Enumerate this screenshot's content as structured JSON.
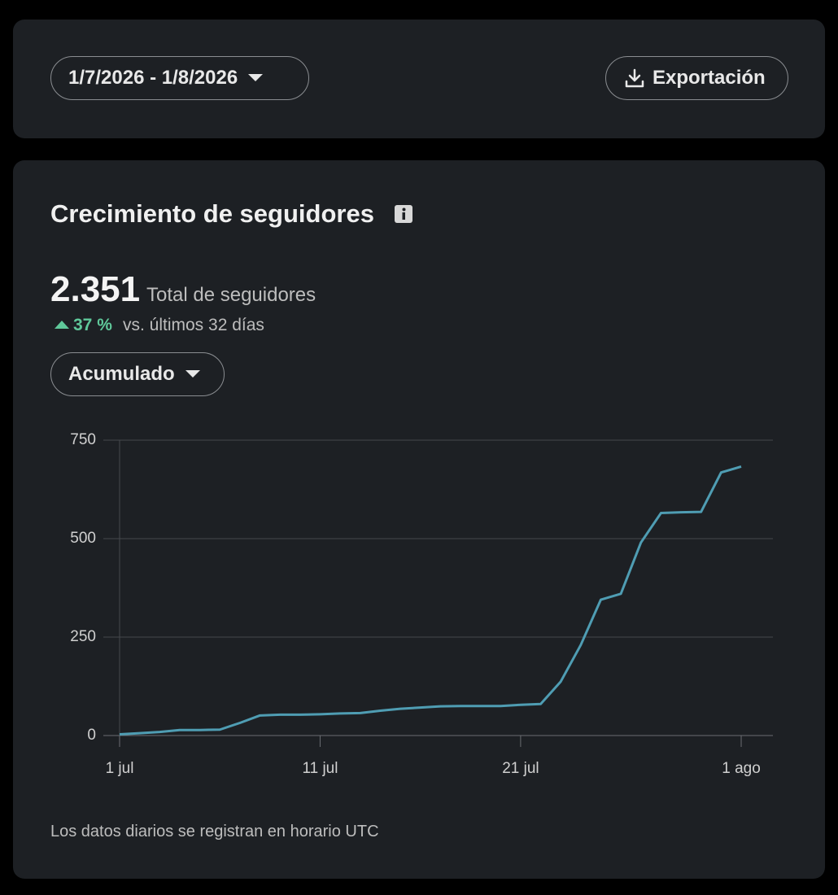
{
  "toolbar": {
    "date_range": "1/7/2026 - 1/8/2026",
    "export": "Exportación"
  },
  "card": {
    "title": "Crecimiento de seguidores",
    "total": "2.351",
    "total_label": "Total de seguidores",
    "change": "37 %",
    "change_label": "vs. últimos 32 días",
    "mode": "Acumulado",
    "footnote": "Los datos diarios se registran en horario UTC"
  },
  "chart_data": {
    "type": "line",
    "categories": [
      "1 jul",
      null,
      null,
      null,
      null,
      null,
      null,
      null,
      null,
      null,
      "11 jul",
      null,
      null,
      null,
      null,
      null,
      null,
      null,
      null,
      null,
      "21 jul",
      null,
      null,
      null,
      null,
      null,
      null,
      null,
      null,
      null,
      null,
      "1 ago"
    ],
    "series": [
      {
        "color": "#4f9db3",
        "values": [
          3,
          6,
          9,
          14,
          14,
          15,
          32,
          51,
          53,
          53,
          54,
          56,
          57,
          63,
          68,
          71,
          74,
          75,
          75,
          75,
          78,
          80,
          137,
          230,
          345,
          360,
          490,
          565,
          567,
          568,
          668,
          683
        ]
      }
    ],
    "ylim": [
      0,
      750
    ],
    "yticks": [
      0,
      250,
      500,
      750
    ],
    "grid": true
  }
}
